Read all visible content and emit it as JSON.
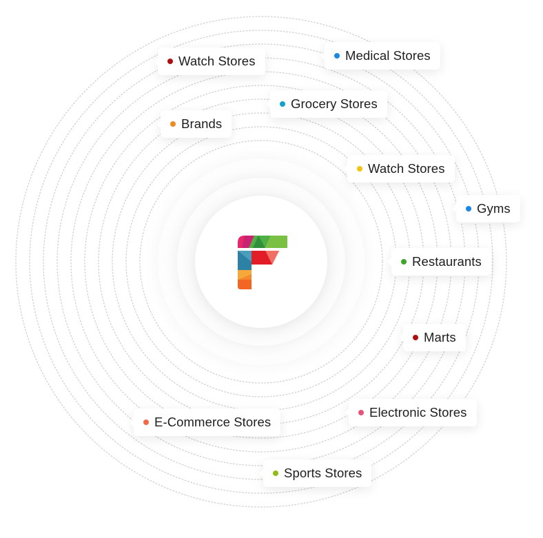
{
  "tags": [
    {
      "label": "Watch Stores",
      "color": "#b00f0f"
    },
    {
      "label": "Medical Stores",
      "color": "#1a87e3"
    },
    {
      "label": "Grocery Stores",
      "color": "#14a3c7"
    },
    {
      "label": "Brands",
      "color": "#f08a24"
    },
    {
      "label": "Watch Stores",
      "color": "#f2c40f"
    },
    {
      "label": "Gyms",
      "color": "#1a87e3"
    },
    {
      "label": "Restaurants",
      "color": "#3ea628"
    },
    {
      "label": "Marts",
      "color": "#b00f0f"
    },
    {
      "label": "Electronic Stores",
      "color": "#e8517a"
    },
    {
      "label": "E-Commerce Stores",
      "color": "#f06a4a"
    },
    {
      "label": "Sports Stores",
      "color": "#8fba1a"
    }
  ],
  "colors": {
    "ring_stroke": "#d3d3d3",
    "logo": [
      "#e8266b",
      "#b3207e",
      "#7ac143",
      "#48a93f",
      "#e31d27",
      "#f26f65",
      "#2b82a5",
      "#3a6fa0",
      "#f7a83b",
      "#f26522"
    ]
  }
}
